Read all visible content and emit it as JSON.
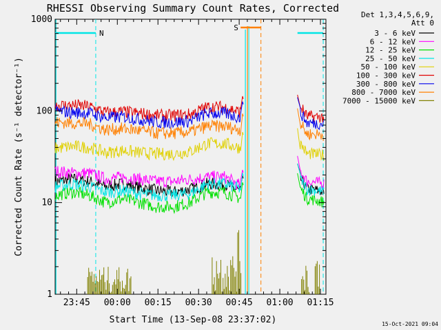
{
  "chart_data": {
    "type": "line",
    "title": "RHESSI Observing Summary Count Rates, Corrected",
    "xlabel": "Start Time (13-Sep-08 23:37:02)",
    "ylabel": "Corrected Count Rate (s⁻¹ detector⁻¹)",
    "y_scale": "log",
    "ylim": [
      1,
      1000
    ],
    "y_ticks": [
      "1",
      "10",
      "100",
      "1000"
    ],
    "x_ticks": [
      "23:45",
      "00:00",
      "00:15",
      "00:30",
      "00:45",
      "01:00",
      "01:15"
    ],
    "xlim_minutes_from_start": [
      0,
      100
    ],
    "legend_header": [
      "Det 1,3,4,5,6,9,",
      "Att 0"
    ],
    "flags": [
      {
        "label": "N",
        "color": "#00e5e5",
        "start": 0,
        "end": 15
      },
      {
        "label": "S",
        "color": "#ff8000",
        "start": 68.5,
        "end": 76
      }
    ],
    "series": [
      {
        "name": "3 - 6 keV",
        "color": "#000000",
        "shape": [
          17,
          18,
          17,
          15,
          16,
          14.5,
          13.5,
          13,
          14,
          16,
          16,
          13,
          12,
          13,
          14,
          14,
          13
        ]
      },
      {
        "name": "6 - 12 keV",
        "color": "#ff00ff",
        "shape": [
          22,
          21,
          21,
          18,
          19,
          18,
          17,
          17,
          18,
          19,
          19,
          15,
          14,
          16,
          17,
          17,
          16
        ]
      },
      {
        "name": "12 - 25 keV",
        "color": "#00e000",
        "shape": [
          12,
          13,
          12,
          10,
          11,
          10,
          9,
          9,
          10,
          13,
          13,
          11,
          10,
          11,
          11,
          11,
          10
        ]
      },
      {
        "name": "25 - 50 keV",
        "color": "#00e5e5",
        "shape": [
          15,
          16,
          15,
          13,
          13.5,
          12.5,
          12,
          12,
          12.5,
          16,
          16,
          14,
          12,
          13,
          14,
          14,
          13
        ]
      },
      {
        "name": "50 - 100 keV",
        "color": "#e0d000",
        "shape": [
          39,
          41,
          40,
          35,
          37,
          35,
          34,
          34,
          36,
          44,
          44,
          39,
          33,
          34,
          34,
          34,
          33
        ]
      },
      {
        "name": "100 - 300 keV",
        "color": "#e00000",
        "shape": [
          115,
          115,
          112,
          96,
          98,
          94,
          89,
          89,
          92,
          110,
          110,
          96,
          84,
          85,
          87,
          87,
          85
        ]
      },
      {
        "name": "300 - 800 keV",
        "color": "#0000ee",
        "shape": [
          100,
          96,
          95,
          84,
          86,
          81,
          75,
          75,
          78,
          94,
          94,
          84,
          70,
          72,
          74,
          74,
          72
        ]
      },
      {
        "name": "800 - 7000 keV",
        "color": "#ff8000",
        "shape": [
          75,
          74,
          72,
          62,
          64,
          61,
          57,
          57,
          59,
          68,
          68,
          62,
          53,
          54,
          56,
          56,
          55
        ]
      },
      {
        "name": "7000 - 15000 keV",
        "color": "#808000",
        "shape": [
          1,
          1,
          1,
          1,
          1,
          1,
          1,
          1,
          1,
          1,
          1,
          1,
          1,
          1,
          1,
          1,
          1
        ]
      }
    ],
    "grid": false,
    "legend_position": "right"
  },
  "timestamp": "15-Oct-2021 09:04"
}
